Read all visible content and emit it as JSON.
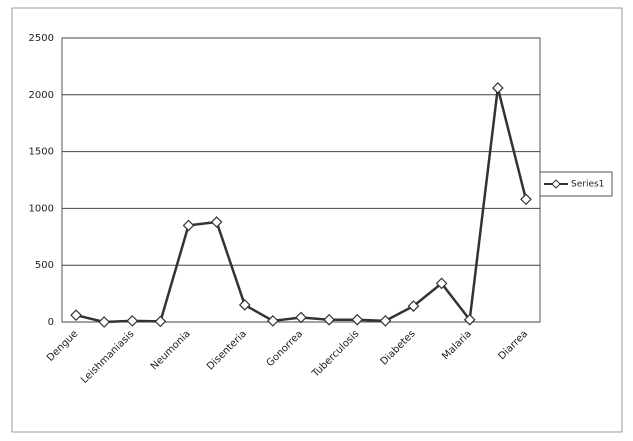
{
  "chart_data": {
    "type": "line",
    "categories": [
      "Dengue",
      null,
      "Leishmaniasis",
      null,
      "Neumonia",
      null,
      "Disenteria",
      null,
      "Gonorrea",
      null,
      "Tuberculosis",
      null,
      "Diabetes",
      null,
      "Malaria",
      null,
      "Diarrea"
    ],
    "series": [
      {
        "name": "Series1",
        "color": "#333333",
        "values": [
          60,
          0,
          10,
          5,
          850,
          880,
          150,
          10,
          40,
          20,
          20,
          10,
          140,
          340,
          20,
          2060,
          1080
        ]
      }
    ],
    "ylim": [
      0,
      2500
    ],
    "yticks": [
      0,
      500,
      1000,
      1500,
      2000,
      2500
    ],
    "grid": true,
    "legend": "right"
  }
}
